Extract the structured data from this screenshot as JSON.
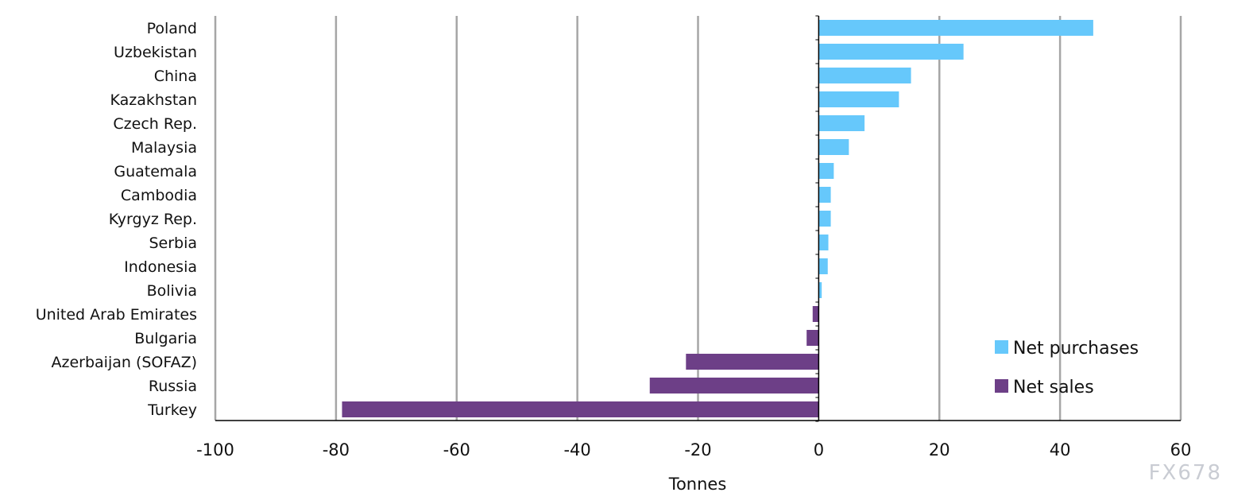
{
  "chart_data": {
    "type": "bar",
    "orientation": "horizontal",
    "categories": [
      "Poland",
      "Uzbekistan",
      "China",
      "Kazakhstan",
      "Czech Rep.",
      "Malaysia",
      "Guatemala",
      "Cambodia",
      "Kyrgyz Rep.",
      "Serbia",
      "Indonesia",
      "Bolivia",
      "United Arab Emirates",
      "Bulgaria",
      "Azerbaijan (SOFAZ)",
      "Russia",
      "Turkey"
    ],
    "values": [
      45.5,
      24.0,
      15.3,
      13.3,
      7.6,
      5.0,
      2.5,
      2.0,
      2.0,
      1.6,
      1.5,
      0.5,
      -1.0,
      -2.0,
      -22.0,
      -28.0,
      -79.0
    ],
    "series": [
      {
        "name": "Net purchases",
        "color": "#66c8fb"
      },
      {
        "name": "Net sales",
        "color": "#6d3f87"
      }
    ],
    "title": "",
    "xlabel": "Tonnes",
    "ylabel": "",
    "xlim": [
      -100,
      60
    ],
    "xticks": [
      -100,
      -80,
      -60,
      -40,
      -20,
      0,
      20,
      40,
      60
    ],
    "grid": "vertical",
    "legend": "bottom-right",
    "gridline_color": "#a6a6a6"
  },
  "watermark": "FX678"
}
